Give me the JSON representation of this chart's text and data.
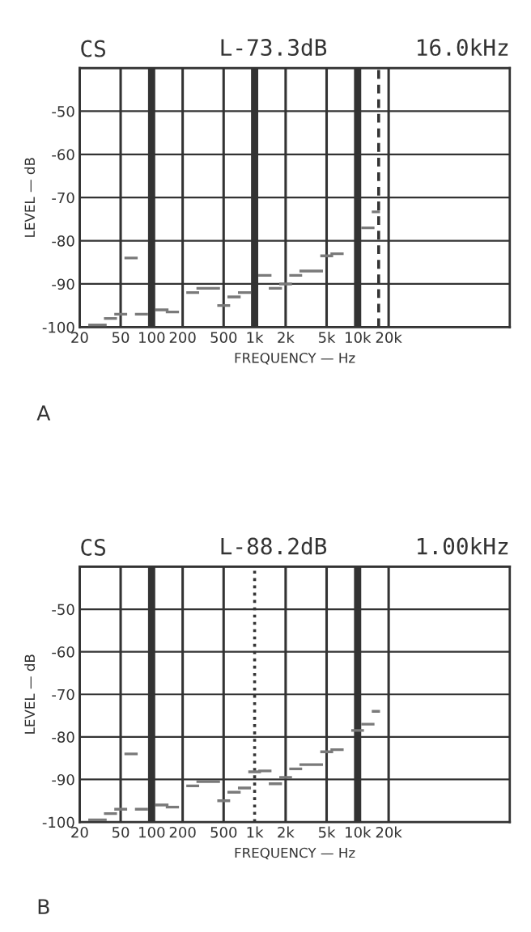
{
  "chart_data": [
    {
      "type": "step",
      "title": "CS",
      "xlabel": "FREQUENCY — Hz",
      "ylabel": "LEVEL — dB",
      "annotations": [
        "L-73.3dB",
        "16.0kHz",
        "A"
      ],
      "x": [
        25,
        31.5,
        40,
        50,
        63,
        80,
        100,
        125,
        160,
        200,
        250,
        315,
        400,
        500,
        630,
        800,
        1000,
        1250,
        1600,
        2000,
        2500,
        3150,
        4000,
        5000,
        6300,
        8000,
        10000,
        12500,
        16000
      ],
      "series": [
        {
          "color": "#7a7a7a",
          "values": [
            -99.5,
            -99.5,
            -98,
            -97,
            -84,
            -97,
            null,
            -96,
            -96.5,
            null,
            -92,
            -91,
            -91,
            -95,
            -93,
            -92,
            null,
            -88,
            -91,
            -90,
            -88,
            -87,
            -87,
            -83.5,
            -83,
            null,
            null,
            -77,
            -73.3
          ]
        }
      ],
      "log": "x",
      "xlim": [
        20,
        300000
      ],
      "ylim": [
        -100,
        -40
      ],
      "xticks": [
        20,
        50,
        100,
        200,
        500,
        {
          "value": 1000,
          "label": "1k"
        },
        {
          "value": 2000,
          "label": "2k"
        },
        {
          "value": 5000,
          "label": "5k"
        },
        {
          "value": 10000,
          "label": "10k"
        },
        {
          "value": 20000,
          "label": "20k"
        }
      ],
      "yticks": [
        -100,
        -90,
        -80,
        -70,
        -60,
        -50,
        {
          "value": -40,
          "label": null
        }
      ],
      "grid": true,
      "ref_lines": [
        {
          "axis": "x",
          "value": 16000,
          "label": null,
          "line_style": "dashed",
          "color": "#333333"
        }
      ]
    },
    {
      "type": "step",
      "title": "CS",
      "xlabel": "FREQUENCY — Hz",
      "ylabel": "LEVEL — dB",
      "annotations": [
        "L-88.2dB",
        "1.00kHz",
        "B"
      ],
      "x": [
        25,
        31.5,
        40,
        50,
        63,
        80,
        100,
        125,
        160,
        200,
        250,
        315,
        400,
        500,
        630,
        800,
        1000,
        1250,
        1600,
        2000,
        2500,
        3150,
        4000,
        5000,
        6300,
        8000,
        10000,
        12500,
        16000
      ],
      "series": [
        {
          "color": "#7a7a7a",
          "values": [
            -99.5,
            -99.5,
            -98,
            -97,
            -84,
            -97,
            null,
            -96,
            -96.5,
            null,
            -91.5,
            -90.5,
            -90.5,
            -95,
            -93,
            -92,
            -88.2,
            -88,
            -91,
            -89.5,
            -87.5,
            -86.5,
            -86.5,
            -83.5,
            -83,
            null,
            -78.5,
            -77,
            -74
          ]
        }
      ],
      "log": "x",
      "xlim": [
        20,
        300000
      ],
      "ylim": [
        -100,
        -40
      ],
      "xticks": [
        20,
        50,
        100,
        200,
        500,
        {
          "value": 1000,
          "label": "1k"
        },
        {
          "value": 2000,
          "label": "2k"
        },
        {
          "value": 5000,
          "label": "5k"
        },
        {
          "value": 10000,
          "label": "10k"
        },
        {
          "value": 20000,
          "label": "20k"
        }
      ],
      "yticks": [
        -100,
        -90,
        -80,
        -70,
        -60,
        -50,
        {
          "value": -40,
          "label": null
        }
      ],
      "grid": true,
      "ref_lines": [
        {
          "axis": "x",
          "value": 1000,
          "label": null,
          "line_style": "dotted",
          "color": "#333333"
        }
      ]
    }
  ]
}
